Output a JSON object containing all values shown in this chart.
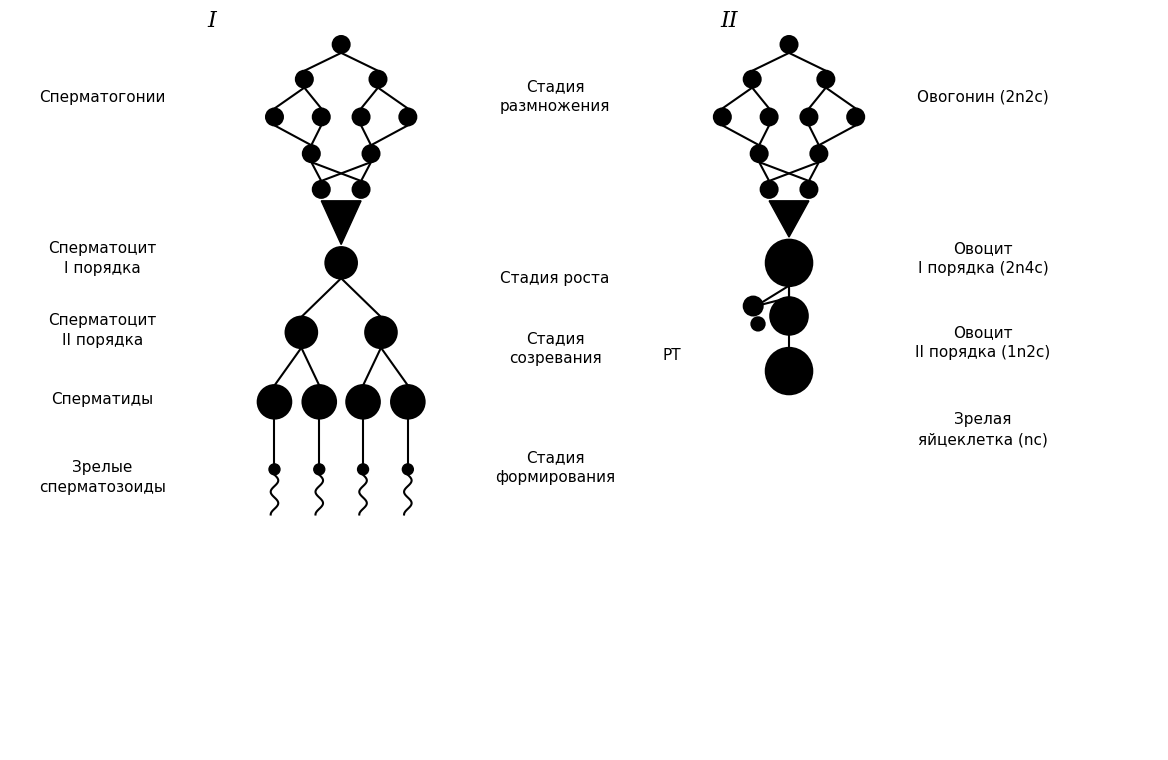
{
  "bg_color": "#ffffff",
  "title_I": "I",
  "title_II": "II",
  "label_spermatogonii": "Сперматогонии",
  "label_spermatocit1": "Сперматоцит\nI порядка",
  "label_spermatocit2": "Сперматоцит\nII порядка",
  "label_spermatidy": "Сперматиды",
  "label_zrelye": "Зрелые\nсперматозоиды",
  "label_stadiya_razm": "Стадия\nразмножения",
  "label_stadiya_rosta": "Стадия роста",
  "label_stadiya_sozr": "Стадия\nсозревания",
  "label_stadiya_form": "Стадия\nформирования",
  "label_ovogonin": "Овогонин (2n2c)",
  "label_oocit1": "Овоцит\nI порядка (2n4c)",
  "label_oocit2": "Овоцит\nII порядка (1n2c)",
  "label_zrelaya": "Зрелая\nяйцеклетка (nc)",
  "label_RT": "РТ"
}
